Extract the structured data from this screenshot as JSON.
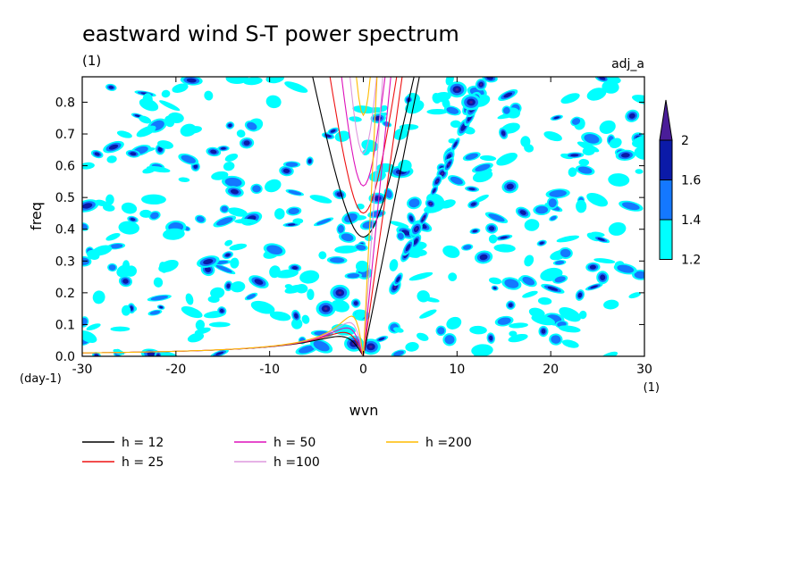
{
  "chart_data": {
    "type": "heatmap",
    "title": "eastward wind S-T power spectrum",
    "subtitle_left": "(1)",
    "subtitle_right": "adj_a",
    "xlabel": "wvn",
    "ylabel": "freq",
    "x_unit": "(1)",
    "y_unit": "(day-1)",
    "xlim": [
      -30,
      30
    ],
    "ylim": [
      0,
      0.88
    ],
    "x_ticks": [
      -30,
      -20,
      -10,
      0,
      10,
      20,
      30
    ],
    "x_tick_labels": [
      "-30",
      "-20",
      "-10",
      "0",
      "10",
      "20",
      "30"
    ],
    "y_ticks": [
      0.0,
      0.1,
      0.2,
      0.3,
      0.4,
      0.5,
      0.6,
      0.7,
      0.8
    ],
    "y_tick_labels": [
      "0.0",
      "0.1",
      "0.2",
      "0.3",
      "0.4",
      "0.5",
      "0.6",
      "0.7",
      "0.8"
    ],
    "contour_levels": [
      1.2,
      1.4,
      1.6,
      2
    ],
    "colorbar": {
      "labels": [
        "1.2",
        "1.4",
        "1.6",
        "2"
      ],
      "colors": [
        "#00ffff",
        "#1478ff",
        "#0b1aa8",
        "#4a1d98"
      ]
    },
    "dispersion_curves": [
      {
        "name": "h = 12",
        "h": 12,
        "color": "#000000"
      },
      {
        "name": "h = 25",
        "h": 25,
        "color": "#ee1111"
      },
      {
        "name": "h = 50",
        "h": 50,
        "color": "#dd11bb"
      },
      {
        "name": "h =100",
        "h": 100,
        "color": "#dd99dd"
      },
      {
        "name": "h =200",
        "h": 200,
        "color": "#ffbb00"
      }
    ],
    "legend_placement": "bottom-left",
    "grid": false
  }
}
